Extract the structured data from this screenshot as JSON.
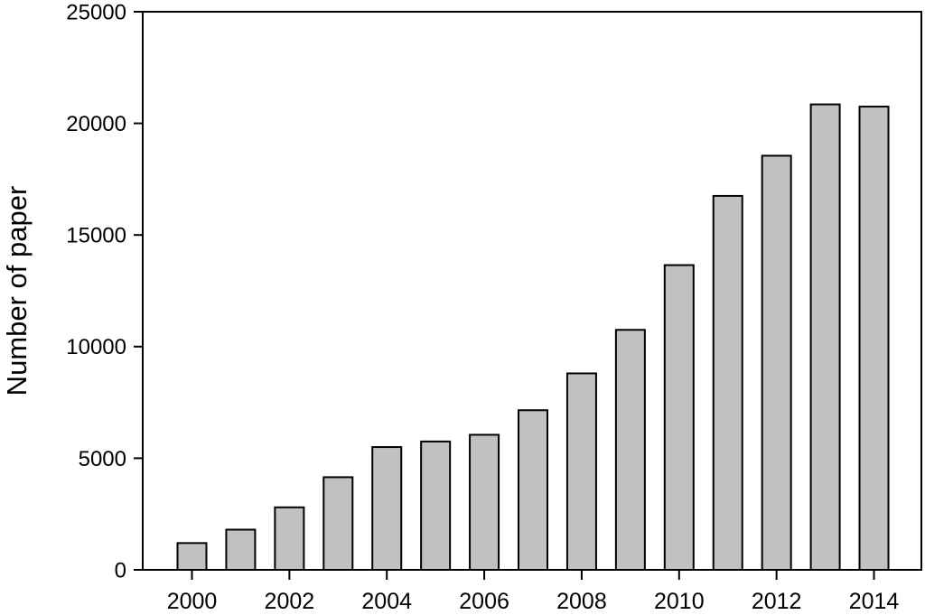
{
  "figure": {
    "background": "#ffffff",
    "bar_fill": "#c1c1c1",
    "bar_stroke": "#000000",
    "axis_color": "#000000",
    "text_color": "#000000"
  },
  "chart_data": {
    "type": "bar",
    "title": "",
    "xlabel": "",
    "ylabel": "Number of paper",
    "categories": [
      "2000",
      "2001",
      "2002",
      "2003",
      "2004",
      "2005",
      "2006",
      "2007",
      "2008",
      "2009",
      "2010",
      "2011",
      "2012",
      "2013",
      "2014"
    ],
    "values": [
      1200,
      1800,
      2800,
      4150,
      5500,
      5750,
      6050,
      7150,
      8800,
      10750,
      13650,
      16750,
      18550,
      20850,
      20750
    ],
    "ylim": [
      0,
      25000
    ],
    "yticks": [
      0,
      5000,
      10000,
      15000,
      20000,
      25000
    ],
    "ytick_labels": [
      "0",
      "5000",
      "10000",
      "15000",
      "20000",
      "25000"
    ],
    "xtick_labels": [
      "2000",
      "2002",
      "2004",
      "2006",
      "2008",
      "2010",
      "2012",
      "2014"
    ],
    "grid": false,
    "legend": false,
    "frame": true
  }
}
